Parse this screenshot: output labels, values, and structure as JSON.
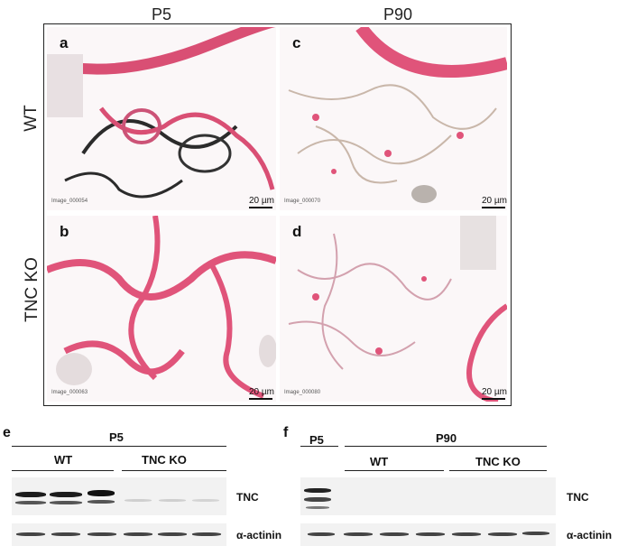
{
  "columns": {
    "p5": "P5",
    "p90": "P90"
  },
  "rows": {
    "wt": "WT",
    "ko": "TNC KO"
  },
  "panels": {
    "a": {
      "letter": "a",
      "image_id": "Image_000054",
      "scale": "20 µm"
    },
    "b": {
      "letter": "b",
      "image_id": "Image_000063",
      "scale": "20 µm"
    },
    "c": {
      "letter": "c",
      "image_id": "Image_000070",
      "scale": "20 µm"
    },
    "d": {
      "letter": "d",
      "image_id": "Image_000080",
      "scale": "20 µm"
    }
  },
  "blot_e": {
    "letter": "e",
    "stage": "P5",
    "group_wt": "WT",
    "group_ko": "TNC KO",
    "label_top": "TNC",
    "label_bottom": "α-actinin"
  },
  "blot_f": {
    "letter": "f",
    "stage_p5": "P5",
    "stage_p90": "P90",
    "group_wt": "WT",
    "group_ko": "TNC KO",
    "label_top": "TNC",
    "label_bottom": "α-actinin"
  },
  "colors": {
    "tissue_pink": "#e0547a",
    "stain_dark": "#2b2b2b",
    "background": "#fbf7f8"
  }
}
